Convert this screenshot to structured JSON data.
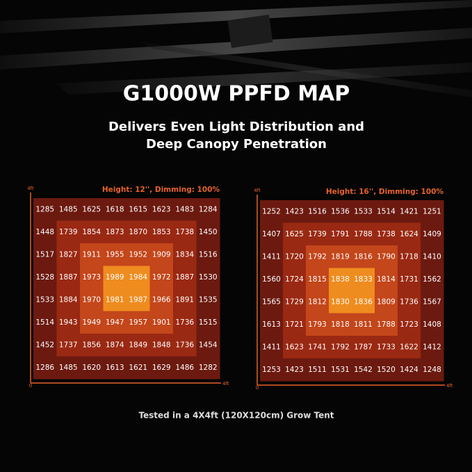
{
  "header": {
    "title": "G1000W PPFD MAP",
    "subtitle_lines": [
      "Delivers Even Light Distribution and",
      "Deep Canopy Penetration"
    ]
  },
  "footnote": "Tested in a 4X4ft (120X120cm) Grow Tent",
  "chart_data": [
    {
      "type": "heatmap",
      "title": "Height: 12'', Dimming: 100%",
      "y_axis_label": "4ft",
      "origin_label": "0",
      "x_axis_label": "4ft",
      "ring_colors": [
        "#6c1a10",
        "#9a2913",
        "#c4461b",
        "#ef8c1f"
      ],
      "values": [
        [
          1285,
          1485,
          1625,
          1618,
          1615,
          1623,
          1483,
          1284
        ],
        [
          1448,
          1739,
          1854,
          1873,
          1870,
          1853,
          1738,
          1450
        ],
        [
          1517,
          1827,
          1911,
          1955,
          1952,
          1909,
          1834,
          1516
        ],
        [
          1528,
          1887,
          1973,
          1989,
          1984,
          1972,
          1887,
          1530
        ],
        [
          1533,
          1884,
          1970,
          1981,
          1987,
          1966,
          1891,
          1535
        ],
        [
          1514,
          1943,
          1949,
          1947,
          1957,
          1901,
          1736,
          1515
        ],
        [
          1452,
          1737,
          1856,
          1874,
          1849,
          1848,
          1736,
          1454
        ],
        [
          1286,
          1485,
          1620,
          1613,
          1621,
          1629,
          1486,
          1282
        ]
      ]
    },
    {
      "type": "heatmap",
      "title": "Height: 16'', Dimming: 100%",
      "y_axis_label": "4ft",
      "origin_label": "0",
      "x_axis_label": "4ft",
      "ring_colors": [
        "#6c1a10",
        "#9a2913",
        "#c4461b",
        "#ef8c1f"
      ],
      "values": [
        [
          1252,
          1423,
          1516,
          1536,
          1533,
          1514,
          1421,
          1251
        ],
        [
          1407,
          1625,
          1739,
          1791,
          1788,
          1738,
          1624,
          1409
        ],
        [
          1411,
          1720,
          1792,
          1819,
          1816,
          1790,
          1718,
          1410
        ],
        [
          1560,
          1724,
          1815,
          1838,
          1833,
          1814,
          1731,
          1562
        ],
        [
          1565,
          1729,
          1812,
          1830,
          1836,
          1809,
          1736,
          1567
        ],
        [
          1613,
          1721,
          1793,
          1818,
          1811,
          1788,
          1723,
          1408
        ],
        [
          1411,
          1623,
          1741,
          1792,
          1787,
          1733,
          1622,
          1412
        ],
        [
          1253,
          1423,
          1511,
          1531,
          1542,
          1520,
          1424,
          1248
        ]
      ]
    }
  ]
}
